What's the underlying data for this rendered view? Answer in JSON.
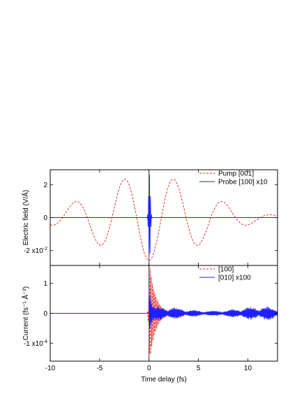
{
  "chart_data": [
    {
      "type": "line",
      "panel": "top",
      "ylabel": "Electric field (V/Å)",
      "xlim": [
        -10,
        13
      ],
      "ylim": [
        -2.9,
        2.9
      ],
      "yticks": [
        {
          "value": 2,
          "label": "2"
        },
        {
          "value": 0,
          "label": "0"
        },
        {
          "value": -2,
          "label": "-2 x10",
          "exp": "-2"
        }
      ],
      "legend_position": "top-right",
      "series": [
        {
          "name": "Pump [001]",
          "color": "#e41a1c",
          "style": "dashed",
          "function": "gaussian-cos",
          "amplitude": 2.6,
          "center": 0,
          "period": 5.0,
          "width": 7.5,
          "sign": -1
        },
        {
          "name": "Probe [100] x10",
          "color": "#1f1fff",
          "style": "solid",
          "function": "fast-pulse",
          "amplitude": 2.6,
          "center": 0.05,
          "period": 0.1,
          "width": 0.12
        }
      ]
    },
    {
      "type": "line",
      "panel": "bottom",
      "ylabel": "Current (fs⁻¹ Å⁻²)",
      "xlabel": "Time delay (fs)",
      "xlim": [
        -10,
        13
      ],
      "ylim": [
        -1.6,
        1.6
      ],
      "xticks": [
        -10,
        -5,
        0,
        5,
        10
      ],
      "yticks": [
        {
          "value": 1,
          "label": "1"
        },
        {
          "value": 0,
          "label": "0"
        },
        {
          "value": -1,
          "label": "-1 x10",
          "exp": "-4"
        }
      ],
      "legend_position": "top-right",
      "series": [
        {
          "name": "[100]",
          "color": "#e41a1c",
          "style": "dashed",
          "function": "spike-decay",
          "amplitude": 1.5,
          "center": 0.1,
          "decay": 0.6
        },
        {
          "name": "[010] x100",
          "color": "#1f1fff",
          "style": "solid",
          "function": "noisy-oscillation",
          "amplitude": 0.2,
          "start": 0.0
        }
      ]
    }
  ]
}
